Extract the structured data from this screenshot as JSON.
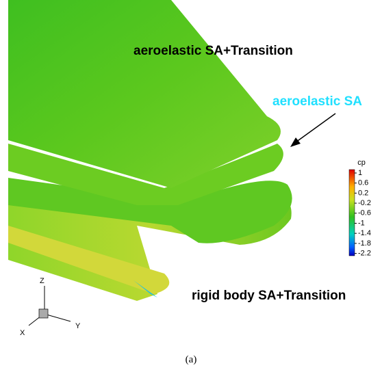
{
  "labels": {
    "top": "aeroelastic SA+Transition",
    "middle": "aeroelastic SA",
    "bottom": "rigid body SA+Transition"
  },
  "colorbar": {
    "title": "cp",
    "ticks": [
      "1",
      "0.6",
      "0.2",
      "-0.2",
      "-0.6",
      "-1",
      "-1.4",
      "-1.8",
      "-2.2"
    ]
  },
  "axes": {
    "z": "Z",
    "y": "Y",
    "x": "X"
  },
  "caption": "(a)"
}
